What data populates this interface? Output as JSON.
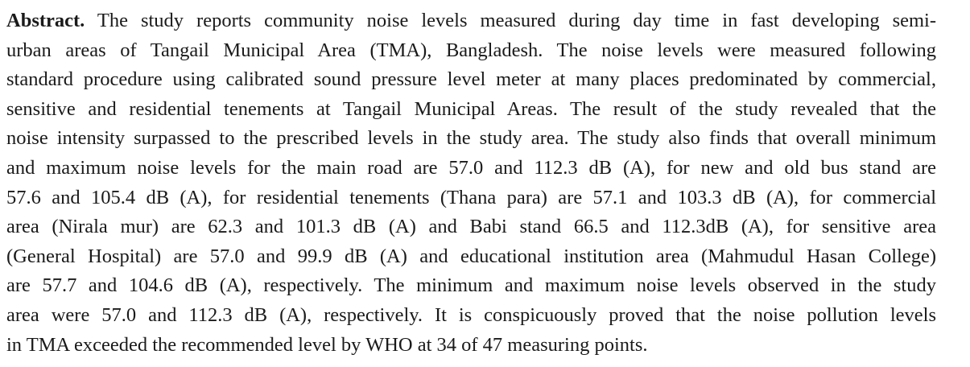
{
  "abstract": {
    "label": "Abstract.",
    "lines": [
      " The study reports community noise levels measured during day time in fast developing semi-",
      "urban areas of Tangail Municipal Area (TMA), Bangladesh. The noise levels were measured following",
      "standard procedure using calibrated sound pressure level meter at many places predominated by commercial,",
      "sensitive and residential tenements at Tangail Municipal Areas. The result of the study revealed that the",
      "noise intensity surpassed to the prescribed levels in the study area. The study also finds that overall minimum",
      "and maximum noise levels for the main road are 57.0 and 112.3 dB (A), for new and old bus stand are",
      "57.6 and 105.4 dB (A), for residential tenements (Thana para) are 57.1 and 103.3 dB (A), for commercial",
      "area (Nirala mur) are 62.3 and 101.3 dB (A) and Babi stand 66.5 and 112.3dB (A), for sensitive area",
      "(General Hospital) are 57.0 and 99.9 dB (A) and educational institution area (Mahmudul Hasan College)",
      "are 57.7 and 104.6 dB (A), respectively. The minimum and maximum noise levels observed in the study",
      "area were 57.0 and 112.3 dB (A), respectively. It is conspicuously proved that the noise pollution levels",
      "in TMA exceeded the recommended level by WHO at 34 of 47 measuring points."
    ]
  }
}
